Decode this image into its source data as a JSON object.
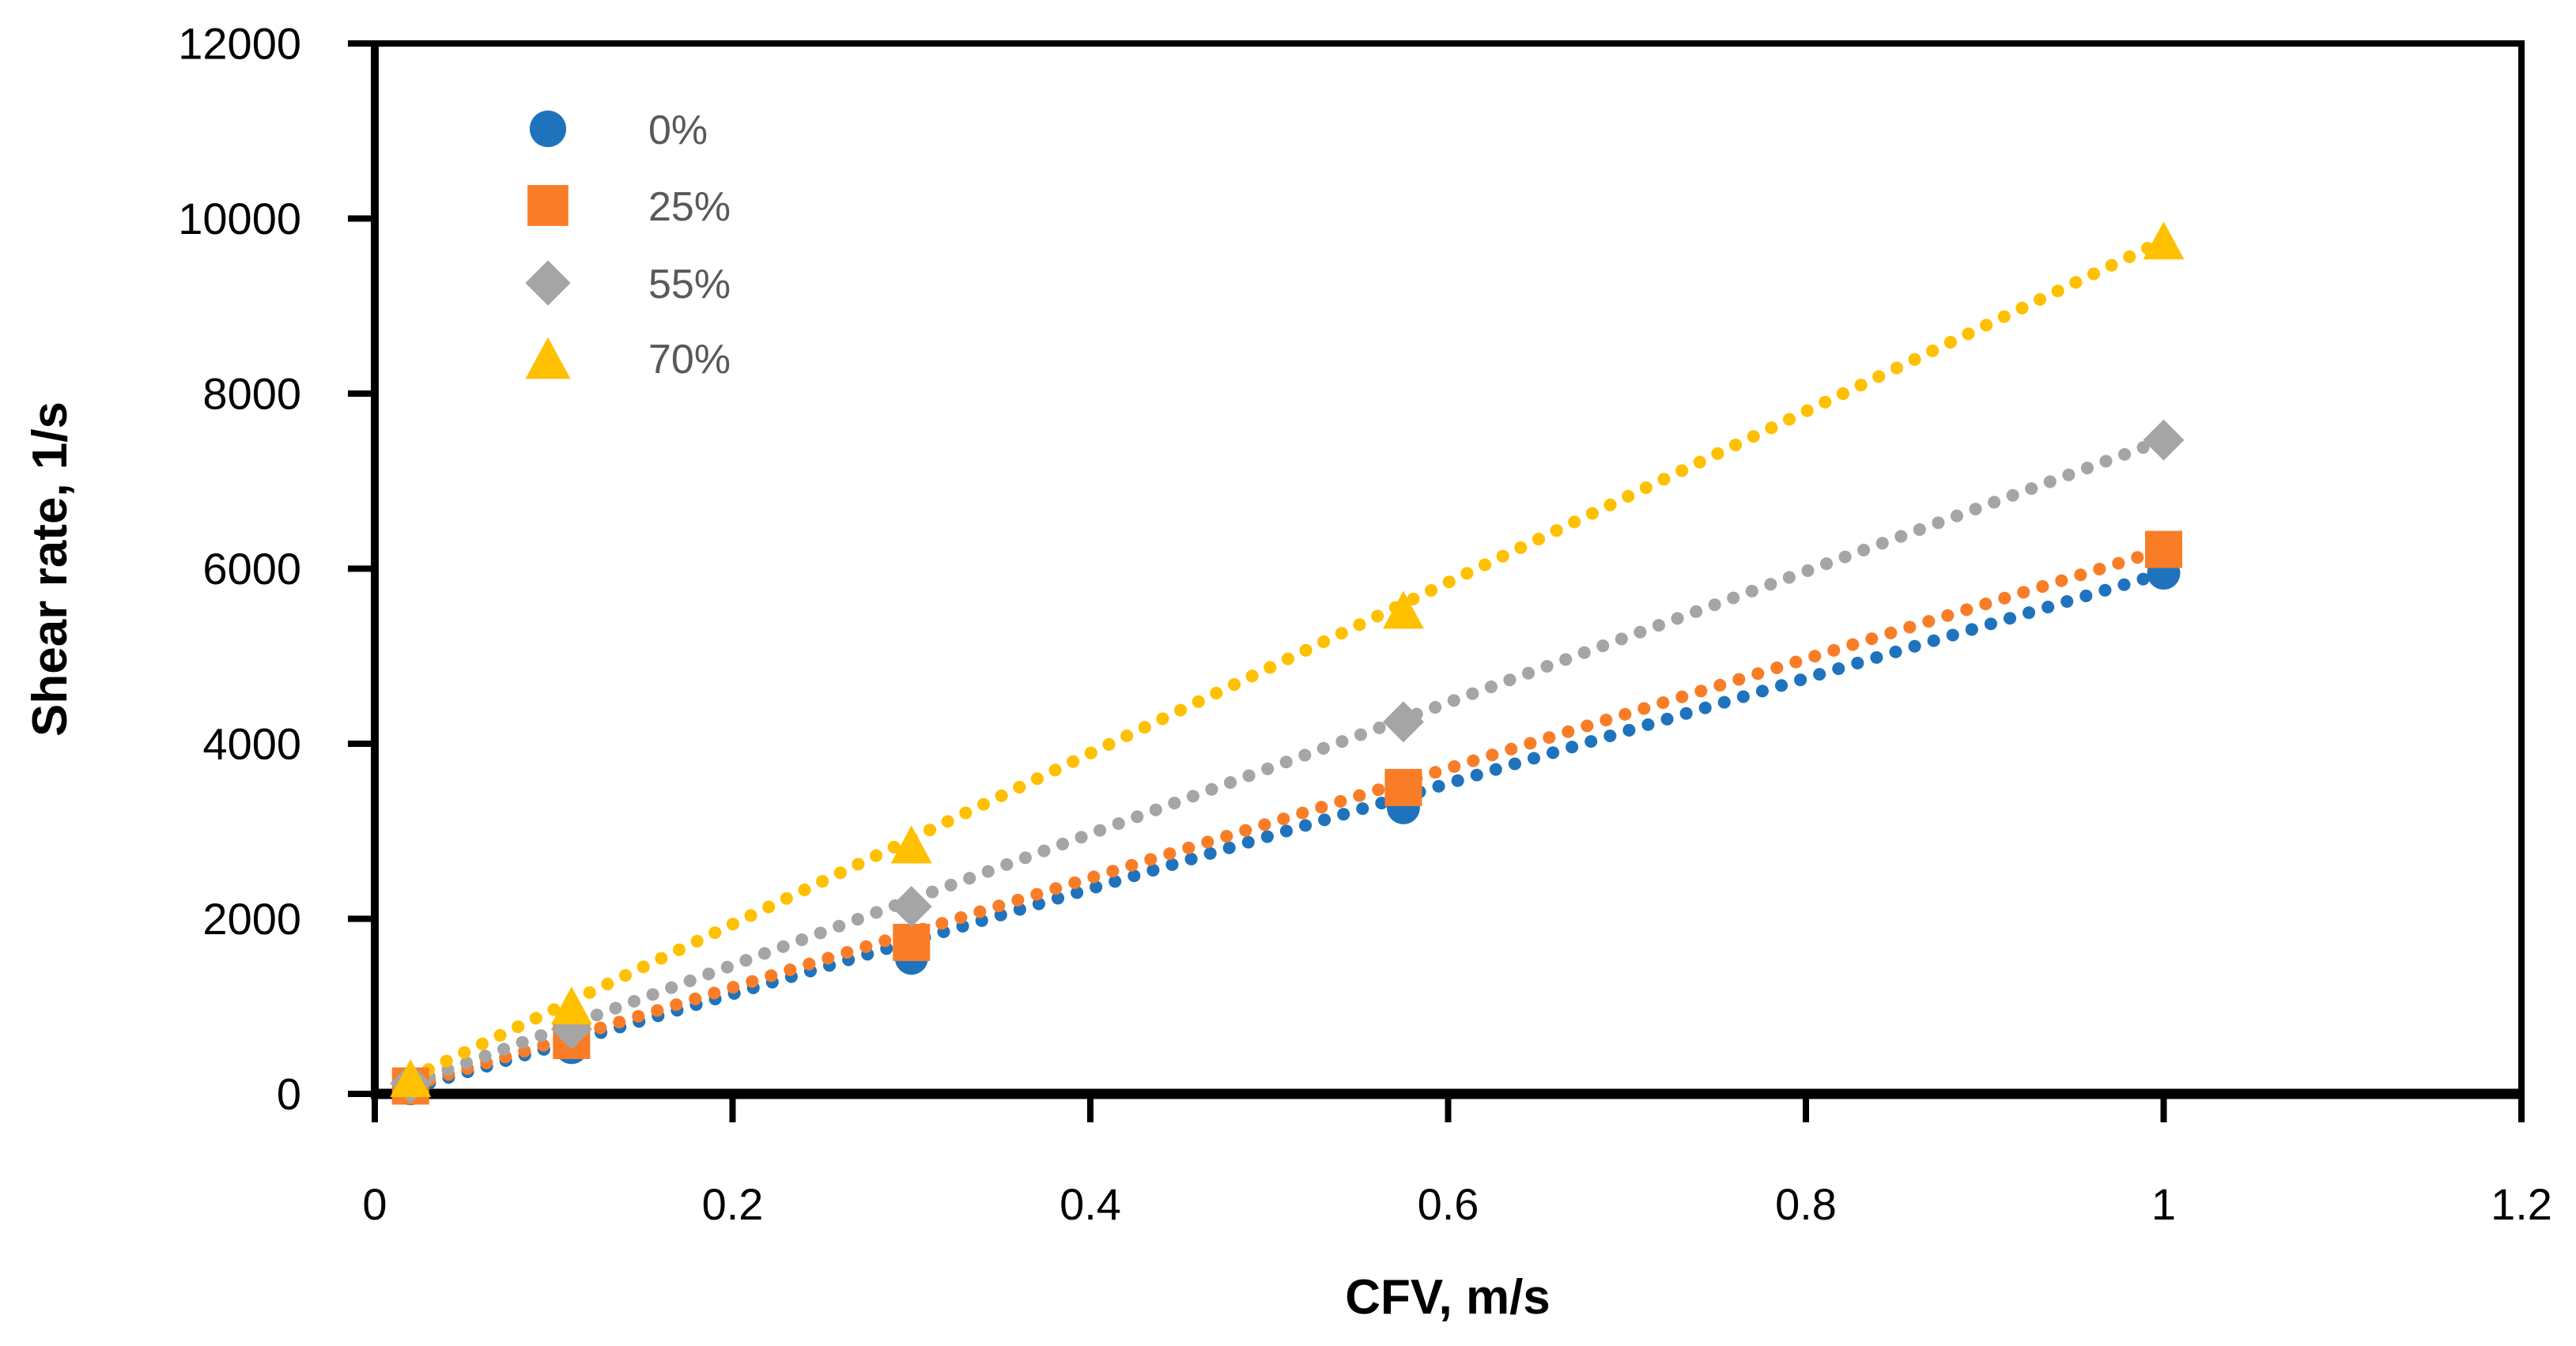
{
  "chart_data": {
    "type": "scatter",
    "title": "",
    "xlabel": "CFV, m/s",
    "ylabel": "Shear rate, 1/s",
    "xlim": [
      0,
      1.2
    ],
    "ylim": [
      0,
      12000
    ],
    "xticks": [
      0,
      0.2,
      0.4,
      0.6,
      0.8,
      1,
      1.2
    ],
    "xtick_labels": [
      "0",
      "0.2",
      "0.4",
      "0.6",
      "0.8",
      "1",
      "1.2"
    ],
    "yticks": [
      0,
      2000,
      4000,
      6000,
      8000,
      10000,
      12000
    ],
    "ytick_labels": [
      "0",
      "2000",
      "4000",
      "6000",
      "8000",
      "10000",
      "12000"
    ],
    "grid": false,
    "legend_position": "inside-top-left",
    "x_shared": [
      0.02,
      0.11,
      0.3,
      0.575,
      1
    ],
    "series": [
      {
        "name": "0%",
        "marker": "circle",
        "color": "#1F73BD",
        "trendline": "dotted",
        "x": [
          0.02,
          0.11,
          0.3,
          0.575,
          1
        ],
        "y": [
          60,
          530,
          1550,
          3270,
          5950
        ]
      },
      {
        "name": "25%",
        "marker": "square",
        "color": "#F97D27",
        "trendline": "dotted",
        "x": [
          0.02,
          0.11,
          0.3,
          0.575,
          1
        ],
        "y": [
          90,
          610,
          1730,
          3500,
          6220
        ]
      },
      {
        "name": "55%",
        "marker": "diamond",
        "color": "#A5A5A5",
        "trendline": "dotted",
        "x": [
          0.02,
          0.11,
          0.3,
          0.575,
          1
        ],
        "y": [
          120,
          740,
          2140,
          4250,
          7470
        ]
      },
      {
        "name": "70%",
        "marker": "triangle",
        "color": "#FFC000",
        "trendline": "dotted",
        "x": [
          0.02,
          0.11,
          0.3,
          0.575,
          1
        ],
        "y": [
          180,
          1010,
          2850,
          5530,
          9750
        ]
      }
    ]
  },
  "colors": {
    "background": "#FFFFFF",
    "axis_line": "#000000",
    "tick_label": "#000000",
    "axis_title": "#000000",
    "legend_text": "#595959"
  }
}
